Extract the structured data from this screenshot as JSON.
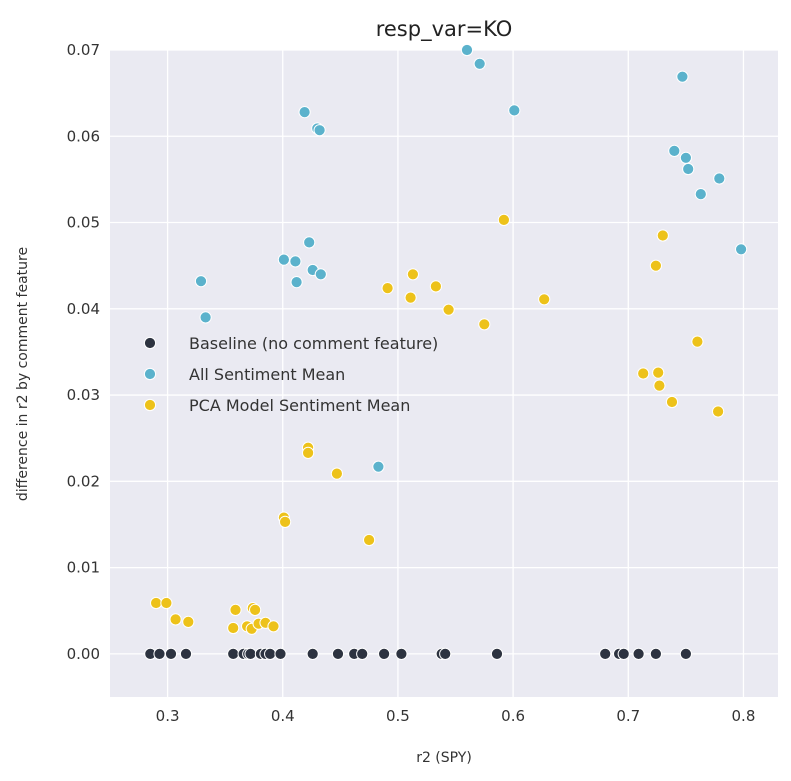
{
  "chart_data": {
    "type": "scatter",
    "title": "resp_var=KO",
    "xlabel": "r2 (SPY)",
    "ylabel": "difference in r2 by comment feature",
    "xlim": [
      0.25,
      0.83
    ],
    "ylim": [
      -0.005,
      0.07
    ],
    "xticks": [
      0.3,
      0.4,
      0.5,
      0.6,
      0.7,
      0.8
    ],
    "yticks": [
      0.0,
      0.01,
      0.02,
      0.03,
      0.04,
      0.05,
      0.06,
      0.07
    ],
    "xtick_labels": [
      "0.3",
      "0.4",
      "0.5",
      "0.6",
      "0.7",
      "0.8"
    ],
    "ytick_labels": [
      "0.00",
      "0.01",
      "0.02",
      "0.03",
      "0.04",
      "0.05",
      "0.06",
      "0.07"
    ],
    "grid": true,
    "background": "#EAEAF2",
    "legend_position": "center-left",
    "series": [
      {
        "name": "Baseline (no comment feature)",
        "color": "#2D3340",
        "points": [
          [
            0.285,
            0.0
          ],
          [
            0.293,
            0.0
          ],
          [
            0.303,
            0.0
          ],
          [
            0.316,
            0.0
          ],
          [
            0.357,
            0.0
          ],
          [
            0.366,
            0.0
          ],
          [
            0.37,
            0.0
          ],
          [
            0.372,
            0.0
          ],
          [
            0.381,
            0.0
          ],
          [
            0.385,
            0.0
          ],
          [
            0.389,
            0.0
          ],
          [
            0.398,
            0.0
          ],
          [
            0.426,
            0.0
          ],
          [
            0.448,
            0.0
          ],
          [
            0.462,
            0.0
          ],
          [
            0.469,
            0.0
          ],
          [
            0.488,
            0.0
          ],
          [
            0.503,
            0.0
          ],
          [
            0.538,
            0.0
          ],
          [
            0.541,
            0.0
          ],
          [
            0.586,
            0.0
          ],
          [
            0.68,
            0.0
          ],
          [
            0.692,
            0.0
          ],
          [
            0.696,
            0.0
          ],
          [
            0.709,
            0.0
          ],
          [
            0.724,
            0.0
          ],
          [
            0.75,
            0.0
          ]
        ]
      },
      {
        "name": "All Sentiment Mean",
        "color": "#5BB2CC",
        "points": [
          [
            0.329,
            0.0432
          ],
          [
            0.333,
            0.039
          ],
          [
            0.401,
            0.0457
          ],
          [
            0.411,
            0.0455
          ],
          [
            0.412,
            0.0431
          ],
          [
            0.419,
            0.0628
          ],
          [
            0.423,
            0.0477
          ],
          [
            0.426,
            0.0445
          ],
          [
            0.43,
            0.0609
          ],
          [
            0.432,
            0.0607
          ],
          [
            0.433,
            0.044
          ],
          [
            0.483,
            0.0217
          ],
          [
            0.56,
            0.07
          ],
          [
            0.571,
            0.0684
          ],
          [
            0.601,
            0.063
          ],
          [
            0.74,
            0.0583
          ],
          [
            0.747,
            0.0669
          ],
          [
            0.75,
            0.0575
          ],
          [
            0.752,
            0.0562
          ],
          [
            0.763,
            0.0533
          ],
          [
            0.779,
            0.0551
          ],
          [
            0.798,
            0.0469
          ]
        ]
      },
      {
        "name": "PCA Model Sentiment Mean",
        "color": "#EDC21A",
        "points": [
          [
            0.29,
            0.0059
          ],
          [
            0.299,
            0.0059
          ],
          [
            0.307,
            0.004
          ],
          [
            0.318,
            0.0037
          ],
          [
            0.357,
            0.003
          ],
          [
            0.359,
            0.0051
          ],
          [
            0.369,
            0.0032
          ],
          [
            0.373,
            0.0029
          ],
          [
            0.374,
            0.0053
          ],
          [
            0.376,
            0.0051
          ],
          [
            0.379,
            0.0035
          ],
          [
            0.385,
            0.0036
          ],
          [
            0.392,
            0.0032
          ],
          [
            0.401,
            0.0158
          ],
          [
            0.402,
            0.0153
          ],
          [
            0.422,
            0.0239
          ],
          [
            0.422,
            0.0233
          ],
          [
            0.447,
            0.0209
          ],
          [
            0.475,
            0.0132
          ],
          [
            0.491,
            0.0424
          ],
          [
            0.511,
            0.0413
          ],
          [
            0.513,
            0.044
          ],
          [
            0.533,
            0.0426
          ],
          [
            0.544,
            0.0399
          ],
          [
            0.575,
            0.0382
          ],
          [
            0.592,
            0.0503
          ],
          [
            0.627,
            0.0411
          ],
          [
            0.713,
            0.0325
          ],
          [
            0.724,
            0.045
          ],
          [
            0.726,
            0.0326
          ],
          [
            0.727,
            0.0311
          ],
          [
            0.73,
            0.0485
          ],
          [
            0.738,
            0.0292
          ],
          [
            0.76,
            0.0362
          ],
          [
            0.778,
            0.0281
          ]
        ]
      }
    ]
  }
}
